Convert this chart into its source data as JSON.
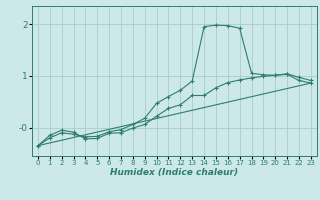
{
  "xlabel": "Humidex (Indice chaleur)",
  "bg_color": "#cce8e8",
  "grid_color": "#aacccc",
  "line_color": "#2d7d6e",
  "xlim": [
    -0.5,
    23.5
  ],
  "ylim": [
    -0.55,
    2.35
  ],
  "x_ticks": [
    0,
    1,
    2,
    3,
    4,
    5,
    6,
    7,
    8,
    9,
    10,
    11,
    12,
    13,
    14,
    15,
    16,
    17,
    18,
    19,
    20,
    21,
    22,
    23
  ],
  "y_ticks": [
    0,
    1,
    2
  ],
  "y_tick_labels": [
    "-0",
    "1",
    "2"
  ],
  "series": [
    {
      "x": [
        0,
        1,
        2,
        3,
        4,
        5,
        6,
        7,
        8,
        9,
        10,
        11,
        12,
        13,
        14,
        15,
        16,
        17,
        18,
        19,
        20,
        21,
        22,
        23
      ],
      "y": [
        -0.35,
        -0.2,
        -0.1,
        -0.13,
        -0.18,
        -0.17,
        -0.08,
        -0.04,
        0.06,
        0.18,
        0.47,
        0.6,
        0.72,
        0.9,
        1.95,
        1.98,
        1.97,
        1.92,
        1.05,
        1.02,
        1.01,
        1.04,
        0.97,
        0.91
      ],
      "marker": true
    },
    {
      "x": [
        0,
        1,
        2,
        3,
        4,
        5,
        6,
        7,
        8,
        9,
        10,
        11,
        12,
        13,
        14,
        15,
        16,
        17,
        18,
        19,
        20,
        21,
        22,
        23
      ],
      "y": [
        -0.35,
        -0.15,
        -0.05,
        -0.09,
        -0.22,
        -0.21,
        -0.11,
        -0.1,
        -0.01,
        0.06,
        0.22,
        0.37,
        0.44,
        0.62,
        0.62,
        0.77,
        0.87,
        0.92,
        0.96,
        0.99,
        1.01,
        1.03,
        0.91,
        0.86
      ],
      "marker": true
    },
    {
      "x": [
        0,
        23
      ],
      "y": [
        -0.35,
        0.86
      ],
      "marker": false
    }
  ]
}
